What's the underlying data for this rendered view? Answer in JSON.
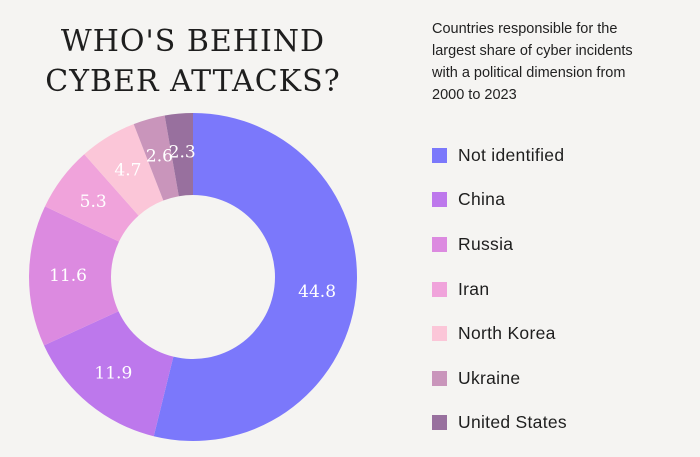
{
  "heading": {
    "line1": "WHO'S BEHIND",
    "line2": "CYBER ATTACKS?"
  },
  "subtitle": {
    "line1": "Countries responsible for the",
    "line2": "largest share of cyber incidents",
    "line3": "with a political dimension from",
    "line4": "2000 to 2023"
  },
  "chart_data": {
    "type": "pie",
    "donut": true,
    "legend_position": "right",
    "categories": [
      "Not identified",
      "China",
      "Russia",
      "Iran",
      "North Korea",
      "Ukraine",
      "United States"
    ],
    "values": [
      44.8,
      11.9,
      11.6,
      5.3,
      4.7,
      2.6,
      2.3
    ],
    "colors": [
      "#7b78fb",
      "#bd78ec",
      "#dc8ae0",
      "#f0a3db",
      "#fbc6d8",
      "#c995bb",
      "#98709e"
    ],
    "data_labels": [
      "44.8",
      "11.9",
      "11.6",
      "5.3",
      "4.7",
      "2.6",
      "2.3"
    ]
  }
}
